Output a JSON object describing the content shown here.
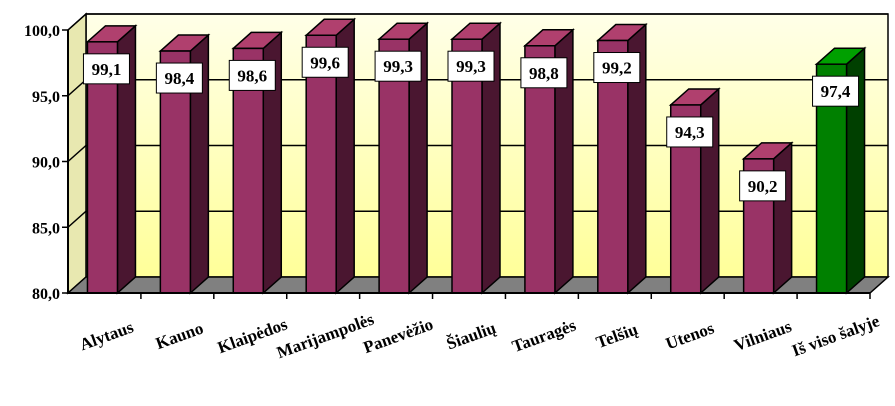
{
  "chart_data": {
    "type": "bar",
    "title": "",
    "xlabel": "",
    "ylabel": "",
    "ylim": [
      80,
      100
    ],
    "yticks": [
      "100,0",
      "95,0",
      "90,0",
      "85,0",
      "80,0"
    ],
    "ytick_values": [
      100,
      95,
      90,
      85,
      80
    ],
    "grid": true,
    "three_d": true,
    "categories": [
      "Alytaus",
      "Kauno",
      "Klaipėdos",
      "Marijampolės",
      "Panevėžio",
      "Šiaulių",
      "Tauragės",
      "Telšių",
      "Utenos",
      "Vilniaus",
      "Iš viso šalyje"
    ],
    "values": [
      99.1,
      98.4,
      98.6,
      99.6,
      99.3,
      99.3,
      98.8,
      99.2,
      94.3,
      90.2,
      97.4
    ],
    "value_labels": [
      "99,1",
      "98,4",
      "98,6",
      "99,6",
      "99,3",
      "99,3",
      "98,8",
      "99,2",
      "94,3",
      "90,2",
      "97,4"
    ],
    "highlight_index": 10,
    "colors": {
      "bar_front": "#993366",
      "bar_top": "#b0406e",
      "bar_side": "#4a1630",
      "highlight_front": "#008000",
      "highlight_top": "#00a000",
      "highlight_side": "#004000",
      "wall": "#ffffcc",
      "floor": "#808080",
      "grid": "#000000"
    }
  }
}
